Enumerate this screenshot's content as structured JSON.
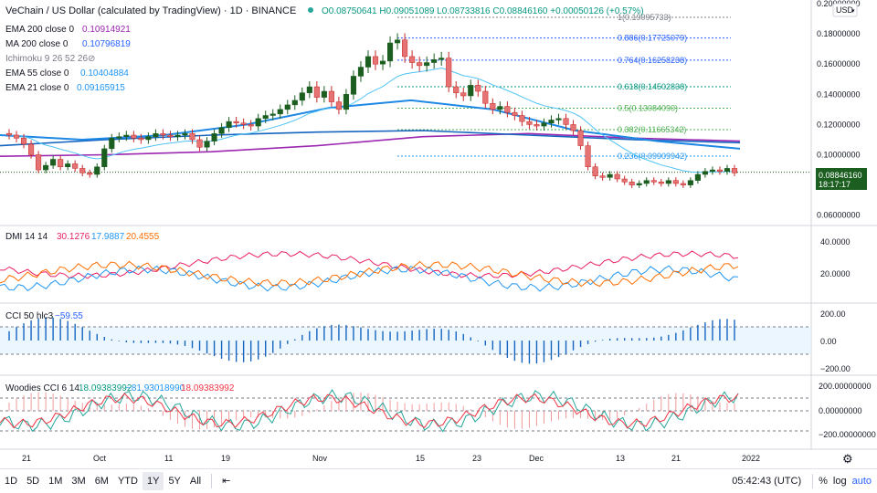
{
  "header": {
    "symbol": "VeChain / US Dollar (calculated by TradingView) · 1D · BINANCE",
    "ohlc": "O0.08750641 H0.09051089 L0.08733816 C0.08846160 +0.00050126 (+0.57%)",
    "currency": "USD"
  },
  "legend": [
    {
      "label": "EMA 200 close 0",
      "value": "0.10914921",
      "color": "#9c27b0"
    },
    {
      "label": "MA 200 close 0",
      "value": "0.10796819",
      "color": "#2962ff"
    },
    {
      "label": "Ichimoku 9 26 52 26",
      "value": "",
      "color": "#787b86"
    },
    {
      "label": "EMA 55 close 0",
      "value": "0.10404884",
      "color": "#2196f3"
    },
    {
      "label": "EMA 21 close 0",
      "value": "0.09165915",
      "color": "#2196f3"
    }
  ],
  "price_axis": [
    "0.20000000",
    "0.18000000",
    "0.16000000",
    "0.14000000",
    "0.12000000",
    "0.10000000",
    "0.08000000",
    "0.06000000"
  ],
  "last_price": {
    "value": "0.08846160",
    "countdown": "18:17:17"
  },
  "dates": [
    "21",
    "Oct",
    "11",
    "19",
    "Nov",
    "15",
    "23",
    "Dec",
    "13",
    "21",
    "2022"
  ],
  "chart_data": {
    "type": "candlestick",
    "title": "VeChain / US Dollar (calculated by TradingView) · 1D · BINANCE",
    "ylim": [
      0.055,
      0.2
    ],
    "xlabels": [
      "21",
      "Oct",
      "11",
      "19",
      "Nov",
      "15",
      "23",
      "Dec",
      "13",
      "21",
      "2022"
    ],
    "fib_levels": [
      {
        "label": "1(0.19095733)",
        "value": 0.19095733,
        "color": "#787b86"
      },
      {
        "label": "0.886(0.17725079)",
        "value": 0.17725079,
        "color": "#2962ff"
      },
      {
        "label": "0.764(0.16258238)",
        "value": 0.16258238,
        "color": "#2962ff"
      },
      {
        "label": "0.618(0.14502838)",
        "value": 0.14502838,
        "color": "#089981"
      },
      {
        "label": "0.5(0.13084090)",
        "value": 0.1308409,
        "color": "#4caf50"
      },
      {
        "label": "0.382(0.11665342)",
        "value": 0.11665342,
        "color": "#4caf50"
      },
      {
        "label": "0.236(0.09909942)",
        "value": 0.09909942,
        "color": "#2196f3"
      }
    ],
    "closes": [
      0.113,
      0.111,
      0.107,
      0.1,
      0.09,
      0.093,
      0.097,
      0.092,
      0.094,
      0.091,
      0.088,
      0.087,
      0.092,
      0.104,
      0.111,
      0.112,
      0.113,
      0.111,
      0.11,
      0.112,
      0.114,
      0.113,
      0.112,
      0.113,
      0.114,
      0.11,
      0.105,
      0.109,
      0.114,
      0.118,
      0.122,
      0.121,
      0.12,
      0.119,
      0.124,
      0.126,
      0.127,
      0.13,
      0.133,
      0.136,
      0.141,
      0.145,
      0.138,
      0.142,
      0.135,
      0.13,
      0.14,
      0.152,
      0.158,
      0.165,
      0.16,
      0.162,
      0.174,
      0.176,
      0.165,
      0.161,
      0.159,
      0.161,
      0.163,
      0.164,
      0.145,
      0.141,
      0.139,
      0.146,
      0.142,
      0.134,
      0.13,
      0.132,
      0.128,
      0.126,
      0.122,
      0.12,
      0.119,
      0.121,
      0.123,
      0.124,
      0.12,
      0.116,
      0.106,
      0.092,
      0.086,
      0.085,
      0.087,
      0.084,
      0.082,
      0.08,
      0.081,
      0.083,
      0.082,
      0.081,
      0.083,
      0.081,
      0.08,
      0.083,
      0.087,
      0.089,
      0.09,
      0.089,
      0.091,
      0.088
    ],
    "ema200": [
      0.099,
      0.105,
      0.109
    ],
    "ma200": [
      0.106,
      0.113,
      0.108
    ],
    "ema55": [
      0.113,
      0.11,
      0.136,
      0.112,
      0.104
    ],
    "indicators": {
      "dmi": {
        "label": "DMI 14 14",
        "values": [
          "30.1276",
          "17.9887",
          "20.4555"
        ],
        "colors": [
          "#e91e63",
          "#2196f3",
          "#ff6d00"
        ],
        "axis": [
          "40.0000",
          "20.0000"
        ]
      },
      "cci": {
        "label": "CCI 50 hlc3",
        "value": "−59.55",
        "axis": [
          "200.00",
          "0.00",
          "−200.00"
        ]
      },
      "woodies": {
        "label": "Woodies CCI 6 14",
        "values": [
          "18.09383992",
          "−81.93018990",
          "18.09383992"
        ],
        "colors": [
          "#089981",
          "#2196f3",
          "#f23645"
        ],
        "axis": [
          "200.00000000",
          "0.00000000",
          "−200.00000000"
        ]
      }
    }
  },
  "bottom_bar": {
    "timeframes": [
      "1D",
      "5D",
      "1M",
      "3M",
      "6M",
      "YTD",
      "1Y",
      "5Y",
      "All"
    ],
    "active": "1Y",
    "time": "05:42:43 (UTC)",
    "percent": "%",
    "log": "log",
    "auto": "auto"
  }
}
